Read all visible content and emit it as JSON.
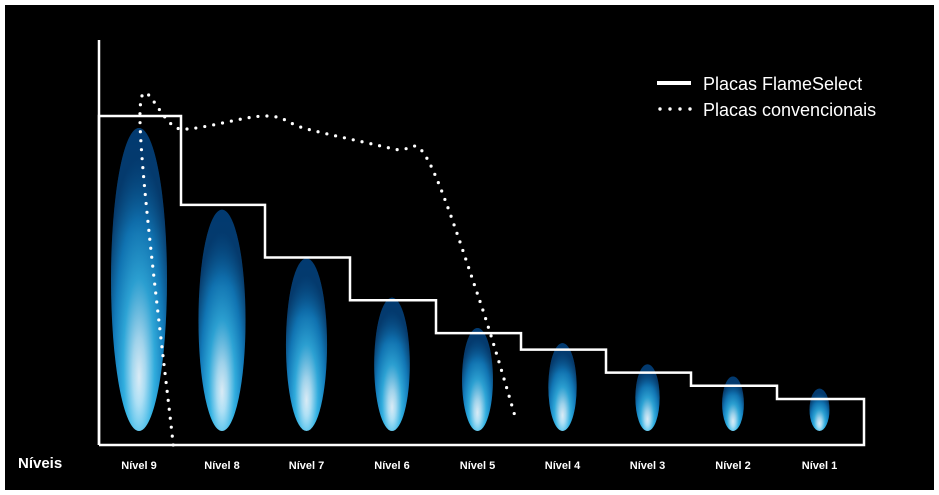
{
  "chart_data": {
    "type": "line",
    "title": "",
    "xlabel": "Níveis",
    "ylabel": "",
    "categories": [
      "Nível 9",
      "Nível 8",
      "Nível 7",
      "Nível 6",
      "Nível 5",
      "Nível 4",
      "Nível 3",
      "Nível 2",
      "Nível 1"
    ],
    "ylim": [
      0,
      100
    ],
    "grid": false,
    "legend_position": "top-right",
    "series": [
      {
        "name": "Placas FlameSelect",
        "style": "solid",
        "values": [
          100,
          73,
          57,
          44,
          34,
          29,
          22,
          18,
          14
        ]
      },
      {
        "name": "Placas convencionais",
        "style": "dotted",
        "x": [
          8.6,
          9.0,
          8.5,
          7.5,
          7.0,
          6.0,
          5.6,
          5.0,
          4.55
        ],
        "y": [
          0,
          101,
          96,
          100,
          96,
          90,
          87,
          45,
          7
        ]
      }
    ],
    "flame_color": "#1e9bd7",
    "line_color": "#ffffff",
    "background": "#000000"
  }
}
